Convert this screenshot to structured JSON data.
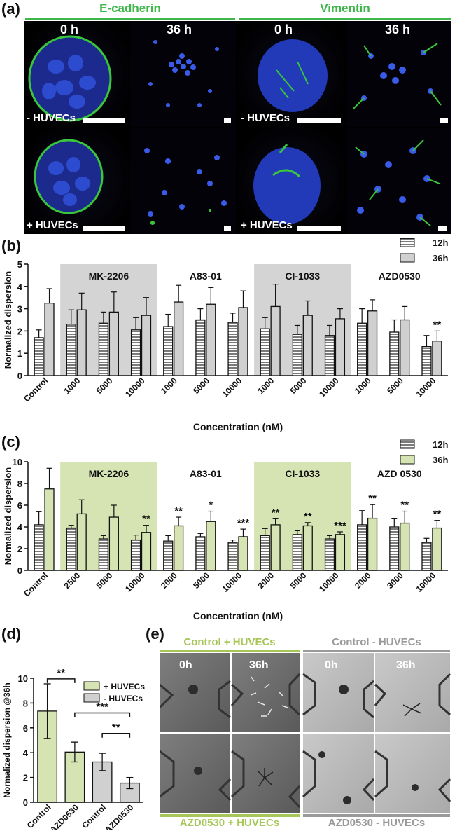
{
  "panels": {
    "a": "(a)",
    "b": "(b)",
    "c": "(c)",
    "d": "(d)",
    "e": "(e)"
  },
  "panel_a": {
    "headers": [
      "E-cadherin",
      "Vimentin"
    ],
    "times": [
      "0 h",
      "36 h",
      "0 h",
      "36 h"
    ],
    "conditions": [
      "- HUVECs",
      "+ HUVECs"
    ],
    "colors": {
      "header": "#3fb64a",
      "nucleus": "#2f4fd6",
      "marker": "#39c63c"
    }
  },
  "chart_data": [
    {
      "id": "b",
      "type": "bar",
      "ylabel": "Normalized dispersion",
      "xlabel": "Concentration (nM)",
      "ylim": [
        0,
        5
      ],
      "yticks": [
        0,
        1,
        2,
        3,
        4,
        5
      ],
      "legend": [
        "12h",
        "36h"
      ],
      "categories": [
        "Control",
        "1000",
        "5000",
        "10000",
        "1000",
        "5000",
        "10000",
        "1000",
        "5000",
        "10000",
        "1000",
        "5000",
        "10000"
      ],
      "series": [
        {
          "name": "12h",
          "values": [
            1.7,
            2.3,
            2.35,
            2.05,
            2.2,
            2.5,
            2.4,
            2.1,
            1.85,
            1.8,
            2.35,
            1.95,
            1.3
          ],
          "errors": [
            0.35,
            0.65,
            0.5,
            0.55,
            0.55,
            0.5,
            0.4,
            0.5,
            0.4,
            0.45,
            0.65,
            0.55,
            0.5
          ]
        },
        {
          "name": "36h",
          "values": [
            3.25,
            2.95,
            2.85,
            2.7,
            3.3,
            3.2,
            3.05,
            3.1,
            2.7,
            2.55,
            2.9,
            2.5,
            1.55
          ],
          "errors": [
            0.65,
            0.75,
            0.9,
            0.8,
            0.75,
            0.75,
            0.75,
            1.0,
            0.65,
            0.45,
            0.5,
            0.6,
            0.45
          ]
        }
      ],
      "groups": [
        {
          "label": "MK-2206",
          "start": 1,
          "end": 3,
          "shaded": true
        },
        {
          "label": "A83-01",
          "start": 4,
          "end": 6,
          "shaded": false
        },
        {
          "label": "CI-1033",
          "start": 7,
          "end": 9,
          "shaded": true
        },
        {
          "label": "AZD0530",
          "start": 10,
          "end": 12,
          "shaded": false
        }
      ],
      "significance": [
        {
          "index": 12,
          "label": "**"
        }
      ],
      "colors": {
        "shade": "#d4d4d4",
        "bar12": "#ffffff",
        "bar36": "#d0d0d0"
      }
    },
    {
      "id": "c",
      "type": "bar",
      "ylabel": "Normalized dispersion",
      "xlabel": "Concentration (nM)",
      "ylim": [
        0,
        10
      ],
      "yticks": [
        0,
        2,
        4,
        6,
        8,
        10
      ],
      "legend": [
        "12h",
        "36h"
      ],
      "categories": [
        "Control",
        "2500",
        "5000",
        "10000",
        "2000",
        "5000",
        "10000",
        "2000",
        "5000",
        "10000",
        "2000",
        "3000",
        "10000"
      ],
      "series": [
        {
          "name": "12h",
          "values": [
            4.2,
            3.9,
            2.9,
            2.8,
            2.7,
            3.1,
            2.6,
            3.2,
            3.3,
            2.9,
            4.2,
            4.0,
            2.6
          ],
          "errors": [
            1.2,
            0.25,
            0.3,
            0.45,
            0.5,
            0.3,
            0.2,
            0.65,
            0.35,
            0.3,
            1.3,
            0.75,
            0.35
          ]
        },
        {
          "name": "36h",
          "values": [
            7.5,
            5.2,
            4.9,
            3.5,
            4.1,
            4.5,
            3.1,
            4.2,
            4.1,
            3.3,
            4.8,
            4.35,
            3.9
          ],
          "errors": [
            1.9,
            1.3,
            1.1,
            0.65,
            0.8,
            0.95,
            0.7,
            0.55,
            0.3,
            0.25,
            1.25,
            1.1,
            0.7
          ]
        }
      ],
      "groups": [
        {
          "label": "MK-2206",
          "start": 1,
          "end": 3,
          "shaded": true
        },
        {
          "label": "A83-01",
          "start": 4,
          "end": 6,
          "shaded": false
        },
        {
          "label": "CI-1033",
          "start": 7,
          "end": 9,
          "shaded": true
        },
        {
          "label": "AZD 0530",
          "start": 10,
          "end": 12,
          "shaded": false
        }
      ],
      "significance": [
        {
          "index": 3,
          "label": "**"
        },
        {
          "index": 4,
          "label": "**"
        },
        {
          "index": 5,
          "label": "*"
        },
        {
          "index": 6,
          "label": "***"
        },
        {
          "index": 7,
          "label": "**"
        },
        {
          "index": 8,
          "label": "**"
        },
        {
          "index": 9,
          "label": "***"
        },
        {
          "index": 10,
          "label": "**"
        },
        {
          "index": 11,
          "label": "**"
        },
        {
          "index": 12,
          "label": "**"
        }
      ],
      "colors": {
        "shade": "#d6e4b3",
        "bar12": "#ffffff",
        "bar36": "#d6e4b3"
      }
    },
    {
      "id": "d",
      "type": "bar",
      "ylabel": "Normalized dispersion @36h",
      "ylim": [
        0,
        10
      ],
      "yticks": [
        0,
        2,
        4,
        6,
        8,
        10
      ],
      "categories": [
        "Control",
        "AZD0530",
        "Control",
        "AZD0530"
      ],
      "values": [
        7.35,
        4.05,
        3.25,
        1.55
      ],
      "errors": [
        2.2,
        0.8,
        0.7,
        0.45
      ],
      "legend": [
        "+ HUVECs",
        "- HUVECs"
      ],
      "series_assignment": [
        "+ HUVECs",
        "+ HUVECs",
        "- HUVECs",
        "- HUVECs"
      ],
      "brackets": [
        {
          "from": 0,
          "to": 1,
          "label": "**"
        },
        {
          "from": 1,
          "to": 3,
          "label": "***"
        },
        {
          "from": 2,
          "to": 3,
          "label": "**"
        }
      ],
      "colors": {
        "plus": "#d6e4b3",
        "minus": "#d0d0d0"
      }
    }
  ],
  "panel_e": {
    "top_left": "Control + HUVECs",
    "top_right": "Control - HUVECs",
    "bottom_left": "AZD0530 + HUVECs",
    "bottom_right": "AZD0530 - HUVECs",
    "times": [
      "0h",
      "36h",
      "0h",
      "36h"
    ],
    "colors": {
      "green": "#a7c65a",
      "gray": "#9a9a9a"
    }
  }
}
